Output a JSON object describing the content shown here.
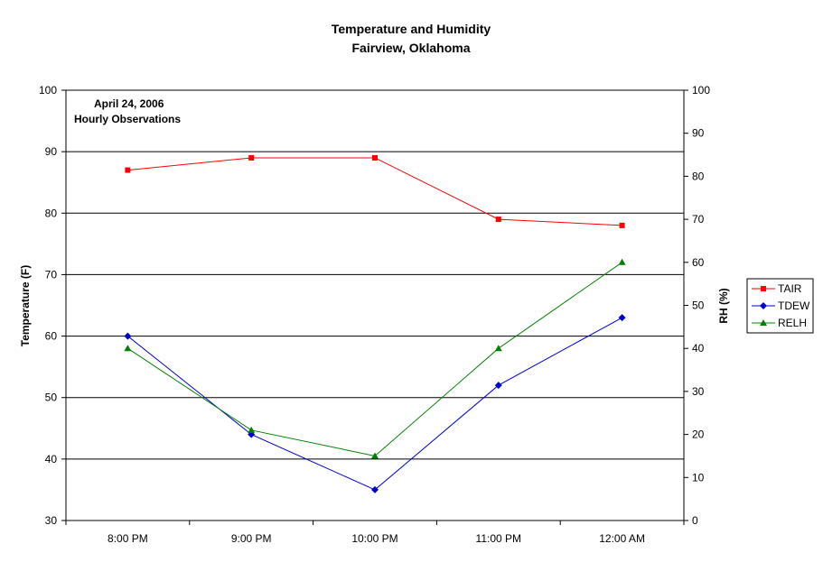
{
  "chart_data": {
    "type": "line",
    "title": "Temperature and Humidity",
    "subtitle": "Fairview, Oklahoma",
    "annotation": [
      "April 24, 2006",
      "Hourly Observations"
    ],
    "categories": [
      "8:00 PM",
      "9:00 PM",
      "10:00 PM",
      "11:00 PM",
      "12:00 AM"
    ],
    "ylabel": "Temperature (F)",
    "y2label": "RH (%)",
    "ylim": [
      30,
      100
    ],
    "y2lim": [
      0,
      100
    ],
    "yticks": [
      30,
      40,
      50,
      60,
      70,
      80,
      90,
      100
    ],
    "y2ticks": [
      0,
      10,
      20,
      30,
      40,
      50,
      60,
      70,
      80,
      90,
      100
    ],
    "grid": "horizontal major lines on left axis",
    "legend_position": "right",
    "series": [
      {
        "name": "TAIR",
        "axis": "left",
        "marker": "square",
        "color": "#ff0000",
        "values": [
          87,
          89,
          89,
          79,
          78
        ]
      },
      {
        "name": "TDEW",
        "axis": "left",
        "marker": "diamond",
        "color": "#0000cc",
        "values": [
          60,
          44,
          35,
          52,
          63
        ]
      },
      {
        "name": "RELH",
        "axis": "right",
        "marker": "triangle",
        "color": "#008000",
        "values": [
          40,
          21,
          15,
          40,
          60
        ]
      }
    ]
  }
}
